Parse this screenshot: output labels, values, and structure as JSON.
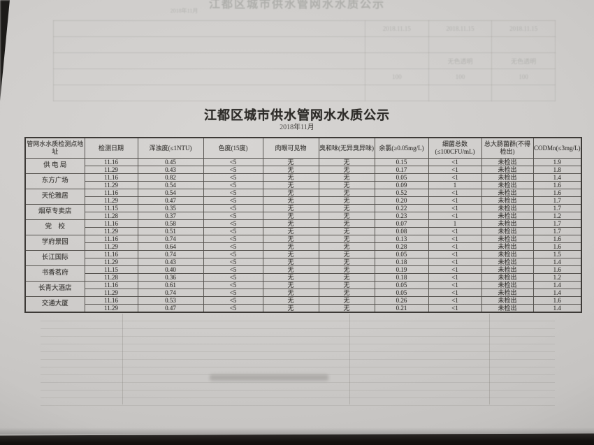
{
  "page": {
    "title": "江都区城市供水管网水水质公示",
    "subtitle": "2018年11月"
  },
  "table": {
    "headers": [
      "管网水水质检测点地址",
      "检测日期",
      "浑浊度(≤1NTU)",
      "色度(15度)",
      "肉眼可见物",
      "臭和味(无异臭异味)",
      "余氯(≥0.05mg/L)",
      "细菌总数(≤100CFU/mL)",
      "总大肠菌群(不得检出)",
      "CODMn(≤3mg/L)"
    ],
    "locations": [
      {
        "name": "供 电 局",
        "samples": [
          [
            "11.16",
            "0.45",
            "<5",
            "无",
            "无",
            "0.15",
            "<1",
            "未检出",
            "1.9"
          ],
          [
            "11.29",
            "0.43",
            "<5",
            "无",
            "无",
            "0.17",
            "<1",
            "未检出",
            "1.8"
          ]
        ]
      },
      {
        "name": "东方广场",
        "samples": [
          [
            "11.16",
            "0.82",
            "<5",
            "无",
            "无",
            "0.05",
            "<1",
            "未检出",
            "1.4"
          ],
          [
            "11.29",
            "0.54",
            "<5",
            "无",
            "无",
            "0.09",
            "1",
            "未检出",
            "1.6"
          ]
        ]
      },
      {
        "name": "天伦雅居",
        "samples": [
          [
            "11.16",
            "0.54",
            "<5",
            "无",
            "无",
            "0.52",
            "<1",
            "未检出",
            "1.6"
          ],
          [
            "11.29",
            "0.47",
            "<5",
            "无",
            "无",
            "0.20",
            "<1",
            "未检出",
            "1.7"
          ]
        ]
      },
      {
        "name": "烟草专卖店",
        "samples": [
          [
            "11.15",
            "0.35",
            "<5",
            "无",
            "无",
            "0.22",
            "<1",
            "未检出",
            "1.7"
          ],
          [
            "11.28",
            "0.37",
            "<5",
            "无",
            "无",
            "0.23",
            "<1",
            "未检出",
            "1.2"
          ]
        ]
      },
      {
        "name": "党　校",
        "samples": [
          [
            "11.16",
            "0.58",
            "<5",
            "无",
            "无",
            "0.07",
            "1",
            "未检出",
            "1.7"
          ],
          [
            "11.29",
            "0.51",
            "<5",
            "无",
            "无",
            "0.08",
            "<1",
            "未检出",
            "1.7"
          ]
        ]
      },
      {
        "name": "学府景园",
        "samples": [
          [
            "11.16",
            "0.74",
            "<5",
            "无",
            "无",
            "0.13",
            "<1",
            "未检出",
            "1.6"
          ],
          [
            "11.29",
            "0.64",
            "<5",
            "无",
            "无",
            "0.28",
            "<1",
            "未检出",
            "1.6"
          ]
        ]
      },
      {
        "name": "长江国际",
        "samples": [
          [
            "11.16",
            "0.74",
            "<5",
            "无",
            "无",
            "0.05",
            "<1",
            "未检出",
            "1.5"
          ],
          [
            "11.29",
            "0.43",
            "<5",
            "无",
            "无",
            "0.18",
            "<1",
            "未检出",
            "1.4"
          ]
        ]
      },
      {
        "name": "书香茗府",
        "samples": [
          [
            "11.15",
            "0.40",
            "<5",
            "无",
            "无",
            "0.19",
            "<1",
            "未检出",
            "1.6"
          ],
          [
            "11.28",
            "0.36",
            "<5",
            "无",
            "无",
            "0.18",
            "<1",
            "未检出",
            "1.2"
          ]
        ]
      },
      {
        "name": "长青大酒店",
        "samples": [
          [
            "11.16",
            "0.61",
            "<5",
            "无",
            "无",
            "0.05",
            "<1",
            "未检出",
            "1.4"
          ],
          [
            "11.29",
            "0.74",
            "<5",
            "无",
            "无",
            "0.05",
            "<1",
            "未检出",
            "1.4"
          ]
        ]
      },
      {
        "name": "交通大厦",
        "samples": [
          [
            "11.16",
            "0.53",
            "<5",
            "无",
            "无",
            "0.26",
            "<1",
            "未检出",
            "1.6"
          ],
          [
            "11.29",
            "0.47",
            "<5",
            "无",
            "无",
            "0.21",
            "<1",
            "未检出",
            "1.4"
          ]
        ]
      }
    ]
  },
  "ghost": {
    "title": "江都区城市供水管网水水质公示",
    "subtitle": "2018年11月",
    "top_table_rows": [
      {
        "label": "",
        "cells": [
          "2018.11.15",
          "2018.11.15",
          "2018.11.15"
        ]
      },
      {
        "label": "",
        "cells": [
          "",
          "",
          ""
        ]
      },
      {
        "label": "",
        "cells": [
          "",
          "无色透明",
          "无色透明"
        ]
      },
      {
        "label": "",
        "cells": [
          "100",
          "100",
          "100"
        ]
      },
      {
        "label": "",
        "cells": [
          "",
          "",
          ""
        ]
      }
    ]
  },
  "colors": {
    "paper": "#cfcdcb",
    "desk": "#14110f",
    "ink": "#3a3835",
    "ghost_ink": "#9d9e9a"
  }
}
